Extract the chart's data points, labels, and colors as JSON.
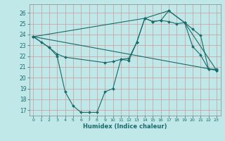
{
  "xlabel": "Humidex (Indice chaleur)",
  "bg_color": "#c0e8e8",
  "grid_color": "#cc9999",
  "line_color": "#1a6b6b",
  "xlim": [
    -0.5,
    23.5
  ],
  "ylim": [
    16.5,
    26.8
  ],
  "yticks": [
    17,
    18,
    19,
    20,
    21,
    22,
    23,
    24,
    25,
    26
  ],
  "xticks": [
    0,
    1,
    2,
    3,
    4,
    5,
    6,
    7,
    8,
    9,
    10,
    11,
    12,
    13,
    14,
    15,
    16,
    17,
    18,
    19,
    20,
    21,
    22,
    23
  ],
  "series": [
    {
      "x": [
        0,
        1,
        2,
        3,
        4,
        5,
        6,
        7,
        8,
        9,
        10,
        11,
        12,
        13,
        14,
        15,
        16,
        17,
        18,
        19,
        20,
        21,
        22,
        23
      ],
      "y": [
        23.8,
        23.3,
        22.8,
        22.0,
        18.7,
        17.4,
        16.8,
        16.8,
        16.8,
        18.7,
        19.0,
        21.7,
        21.8,
        23.3,
        25.5,
        25.2,
        25.3,
        25.2,
        25.0,
        25.1,
        22.9,
        22.1,
        20.8,
        20.8
      ]
    },
    {
      "x": [
        0,
        2,
        3,
        4,
        9,
        10,
        11,
        12,
        13,
        14,
        15,
        16,
        17,
        19,
        20,
        21,
        22,
        23
      ],
      "y": [
        23.8,
        22.8,
        22.2,
        21.9,
        21.4,
        21.5,
        21.7,
        21.6,
        23.3,
        25.5,
        25.2,
        25.3,
        26.2,
        25.1,
        24.5,
        23.9,
        20.8,
        20.7
      ]
    },
    {
      "x": [
        0,
        14,
        17,
        19,
        23
      ],
      "y": [
        23.8,
        25.5,
        26.2,
        25.1,
        20.7
      ]
    },
    {
      "x": [
        0,
        23
      ],
      "y": [
        23.8,
        20.7
      ]
    }
  ]
}
